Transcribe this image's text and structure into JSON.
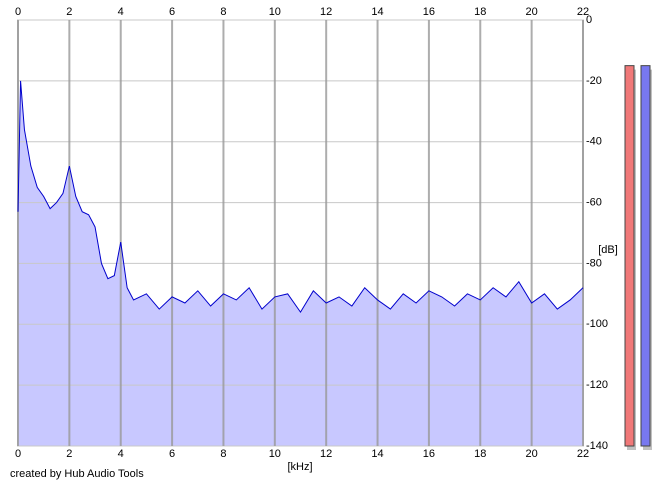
{
  "chart_data": {
    "type": "area",
    "x_label": "[kHz]",
    "y_label": "[dB]",
    "footer": "created by Hub Audio Tools",
    "x": [
      0,
      0.1,
      0.25,
      0.5,
      0.75,
      1,
      1.25,
      1.5,
      1.75,
      2,
      2.25,
      2.5,
      2.75,
      3,
      3.25,
      3.5,
      3.75,
      4,
      4.25,
      4.5,
      5,
      5.5,
      6,
      6.5,
      7,
      7.5,
      8,
      8.5,
      9,
      9.5,
      10,
      10.5,
      11,
      11.5,
      12,
      12.5,
      13,
      13.5,
      14,
      14.5,
      15,
      15.5,
      16,
      16.5,
      17,
      17.5,
      18,
      18.5,
      19,
      19.5,
      20,
      20.5,
      21,
      21.5,
      22
    ],
    "values": [
      -63,
      -20,
      -36,
      -48,
      -55,
      -58,
      -62,
      -60,
      -57,
      -48,
      -58,
      -63,
      -64,
      -68,
      -80,
      -85,
      -84,
      -73,
      -88,
      -92,
      -90,
      -95,
      -91,
      -93,
      -89,
      -94,
      -90,
      -92,
      -88,
      -95,
      -91,
      -90,
      -96,
      -89,
      -93,
      -91,
      -94,
      -88,
      -92,
      -95,
      -90,
      -93,
      -89,
      -91,
      -94,
      -90,
      -92,
      -88,
      -91,
      -86,
      -93,
      -90,
      -95,
      -92,
      -88
    ],
    "color": "#0000cc",
    "fill": "#c8c8ff",
    "xlim": [
      0,
      22
    ],
    "xticks": [
      0,
      2,
      4,
      6,
      8,
      10,
      12,
      14,
      16,
      18,
      20,
      22
    ],
    "ylim": [
      -140,
      0
    ],
    "yticks": [
      0,
      -20,
      -40,
      -60,
      -80,
      -100,
      -120,
      -140
    ],
    "grid": true,
    "meters": [
      {
        "color": "#f07878",
        "value": -15
      },
      {
        "color": "#7878f0",
        "value": -15
      }
    ]
  }
}
